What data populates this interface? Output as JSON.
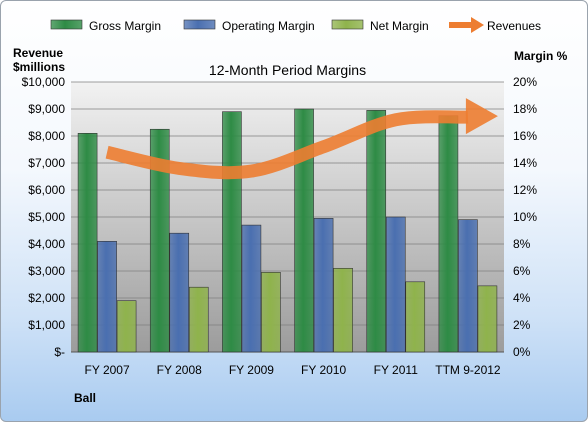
{
  "chart_data": {
    "type": "bar",
    "title": "12-Month Period Margins",
    "left_axis_title": [
      "Revenue",
      "$millions"
    ],
    "right_axis_title": "Margin %",
    "company_label": "Ball",
    "categories": [
      "FY 2007",
      "FY 2008",
      "FY 2009",
      "FY 2010",
      "FY 2011",
      "TTM 9-2012"
    ],
    "left_axis": {
      "ylim": [
        0,
        10000
      ],
      "tick_values": [
        0,
        1000,
        2000,
        3000,
        4000,
        5000,
        6000,
        7000,
        8000,
        9000,
        10000
      ],
      "tick_labels": [
        "$-",
        "$1,000",
        "$2,000",
        "$3,000",
        "$4,000",
        "$5,000",
        "$6,000",
        "$7,000",
        "$8,000",
        "$9,000",
        "$10,000"
      ]
    },
    "right_axis": {
      "ylim": [
        0,
        20
      ],
      "tick_values": [
        0,
        2,
        4,
        6,
        8,
        10,
        12,
        14,
        16,
        18,
        20
      ],
      "tick_labels": [
        "0%",
        "2%",
        "4%",
        "6%",
        "8%",
        "10%",
        "12%",
        "14%",
        "16%",
        "18%",
        "20%"
      ]
    },
    "series": [
      {
        "name": "Gross Margin",
        "axis": "right",
        "kind": "bar",
        "color": "#2e8b45",
        "values": [
          16.2,
          16.5,
          17.8,
          18.0,
          17.9,
          17.5
        ]
      },
      {
        "name": "Operating Margin",
        "axis": "right",
        "kind": "bar",
        "color": "#4a6fb0",
        "values": [
          8.2,
          8.8,
          9.4,
          9.9,
          10.0,
          9.8
        ]
      },
      {
        "name": "Net Margin",
        "axis": "right",
        "kind": "bar",
        "color": "#8fb34c",
        "values": [
          3.8,
          4.8,
          5.9,
          6.2,
          5.2,
          4.9
        ]
      },
      {
        "name": "Revenues",
        "axis": "left",
        "kind": "line",
        "color": "#ed7d31",
        "values": [
          7400,
          6800,
          6700,
          7600,
          8600,
          8700
        ]
      }
    ],
    "legend_position": "top",
    "grid": true
  }
}
